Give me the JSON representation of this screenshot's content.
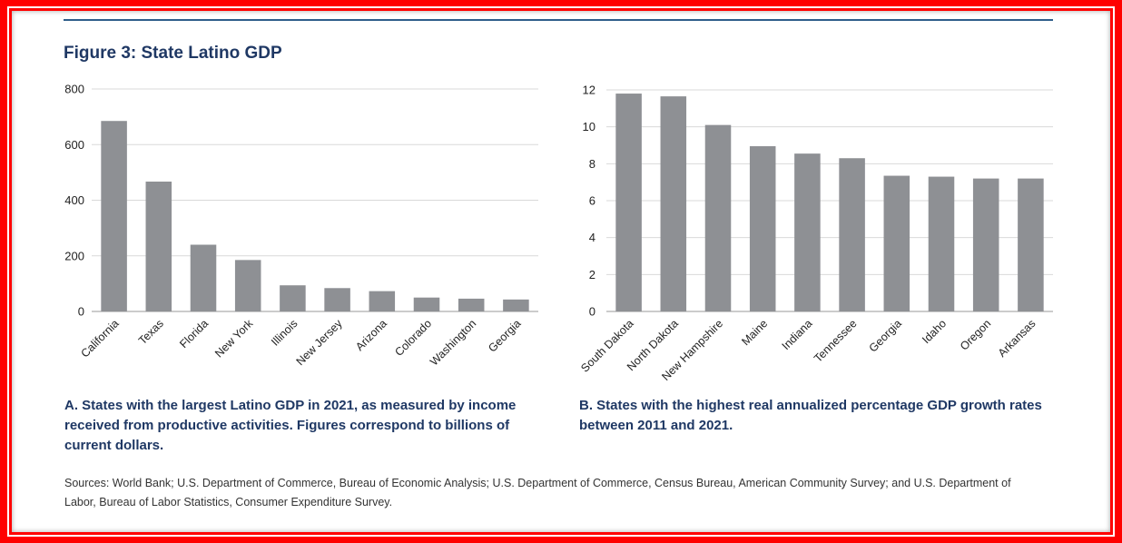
{
  "figure_title": "Figure 3: State Latino GDP",
  "colors": {
    "bar": "#8e9094",
    "title": "#1f3864",
    "frame": "#ff0000",
    "rule": "#2e5d8a"
  },
  "chart_data": [
    {
      "type": "bar",
      "categories": [
        "California",
        "Texas",
        "Florida",
        "New York",
        "Illinois",
        "New Jersey",
        "Arizona",
        "Colorado",
        "Washington",
        "Georgia"
      ],
      "values": [
        685,
        467,
        240,
        185,
        94,
        84,
        73,
        50,
        46,
        43
      ],
      "ylim": [
        0,
        800
      ],
      "yticks": [
        0,
        200,
        400,
        600,
        800
      ],
      "grid": true,
      "caption": "A. States with the largest Latino GDP in 2021, as measured by income received from productive activities. Figures correspond to billions of current dollars."
    },
    {
      "type": "bar",
      "categories": [
        "South Dakota",
        "North Dakota",
        "New Hampshire",
        "Maine",
        "Indiana",
        "Tennessee",
        "Georgia",
        "Idaho",
        "Oregon",
        "Arkansas"
      ],
      "values": [
        11.8,
        11.65,
        10.1,
        8.95,
        8.55,
        8.3,
        7.35,
        7.3,
        7.2,
        7.2
      ],
      "ylim": [
        0,
        12
      ],
      "yticks": [
        0,
        2,
        4,
        6,
        8,
        10,
        12
      ],
      "grid": true,
      "caption": "B. States with the highest real annualized percentage GDP growth rates between 2011 and 2021."
    }
  ],
  "sources": "Sources: World Bank; U.S. Department of Commerce, Bureau of Economic Analysis; U.S. Department of Commerce, Census Bureau, American Community Survey; and U.S. Department of Labor, Bureau of Labor Statistics, Consumer Expenditure Survey."
}
